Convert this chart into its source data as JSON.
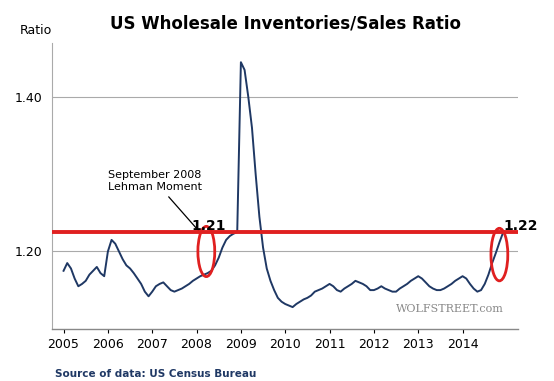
{
  "title": "US Wholesale Inventories/Sales Ratio",
  "ratio_label": "Ratio",
  "source_text": "Source of data: US Census Bureau",
  "watermark": "WOLFSTREET.com",
  "red_line_y": 1.225,
  "annotation_text": "September 2008\nLehman Moment",
  "circle1_label": "1.21",
  "circle2_label": "1.22",
  "line_color": "#1f3864",
  "red_color": "#e02020",
  "background_color": "#ffffff",
  "grid_color": "#aaaaaa",
  "ylim": [
    1.1,
    1.47
  ],
  "yticks": [
    1.2,
    1.4
  ],
  "xlim": [
    2004.75,
    2015.25
  ],
  "xticks": [
    2005,
    2006,
    2007,
    2008,
    2009,
    2010,
    2011,
    2012,
    2013,
    2014
  ],
  "dates": [
    2005.0,
    2005.083,
    2005.167,
    2005.25,
    2005.333,
    2005.417,
    2005.5,
    2005.583,
    2005.667,
    2005.75,
    2005.833,
    2005.917,
    2006.0,
    2006.083,
    2006.167,
    2006.25,
    2006.333,
    2006.417,
    2006.5,
    2006.583,
    2006.667,
    2006.75,
    2006.833,
    2006.917,
    2007.0,
    2007.083,
    2007.167,
    2007.25,
    2007.333,
    2007.417,
    2007.5,
    2007.583,
    2007.667,
    2007.75,
    2007.833,
    2007.917,
    2008.0,
    2008.083,
    2008.167,
    2008.25,
    2008.333,
    2008.417,
    2008.5,
    2008.583,
    2008.667,
    2008.75,
    2008.833,
    2008.917,
    2009.0,
    2009.083,
    2009.167,
    2009.25,
    2009.333,
    2009.417,
    2009.5,
    2009.583,
    2009.667,
    2009.75,
    2009.833,
    2009.917,
    2010.0,
    2010.083,
    2010.167,
    2010.25,
    2010.333,
    2010.417,
    2010.5,
    2010.583,
    2010.667,
    2010.75,
    2010.833,
    2010.917,
    2011.0,
    2011.083,
    2011.167,
    2011.25,
    2011.333,
    2011.417,
    2011.5,
    2011.583,
    2011.667,
    2011.75,
    2011.833,
    2011.917,
    2012.0,
    2012.083,
    2012.167,
    2012.25,
    2012.333,
    2012.417,
    2012.5,
    2012.583,
    2012.667,
    2012.75,
    2012.833,
    2012.917,
    2013.0,
    2013.083,
    2013.167,
    2013.25,
    2013.333,
    2013.417,
    2013.5,
    2013.583,
    2013.667,
    2013.75,
    2013.833,
    2013.917,
    2014.0,
    2014.083,
    2014.167,
    2014.25,
    2014.333,
    2014.417,
    2014.5,
    2014.583,
    2014.667,
    2014.75,
    2014.833,
    2014.917
  ],
  "values": [
    1.175,
    1.185,
    1.178,
    1.165,
    1.155,
    1.158,
    1.162,
    1.17,
    1.175,
    1.18,
    1.172,
    1.168,
    1.2,
    1.215,
    1.21,
    1.2,
    1.19,
    1.182,
    1.178,
    1.172,
    1.165,
    1.158,
    1.148,
    1.142,
    1.148,
    1.155,
    1.158,
    1.16,
    1.155,
    1.15,
    1.148,
    1.15,
    1.152,
    1.155,
    1.158,
    1.162,
    1.165,
    1.168,
    1.17,
    1.172,
    1.175,
    1.182,
    1.192,
    1.205,
    1.215,
    1.22,
    1.223,
    1.225,
    1.445,
    1.435,
    1.4,
    1.36,
    1.3,
    1.245,
    1.205,
    1.178,
    1.162,
    1.15,
    1.14,
    1.135,
    1.132,
    1.13,
    1.128,
    1.132,
    1.135,
    1.138,
    1.14,
    1.143,
    1.148,
    1.15,
    1.152,
    1.155,
    1.158,
    1.155,
    1.15,
    1.148,
    1.152,
    1.155,
    1.158,
    1.162,
    1.16,
    1.158,
    1.155,
    1.15,
    1.15,
    1.152,
    1.155,
    1.152,
    1.15,
    1.148,
    1.148,
    1.152,
    1.155,
    1.158,
    1.162,
    1.165,
    1.168,
    1.165,
    1.16,
    1.155,
    1.152,
    1.15,
    1.15,
    1.152,
    1.155,
    1.158,
    1.162,
    1.165,
    1.168,
    1.165,
    1.158,
    1.152,
    1.148,
    1.15,
    1.158,
    1.17,
    1.185,
    1.198,
    1.212,
    1.225
  ]
}
